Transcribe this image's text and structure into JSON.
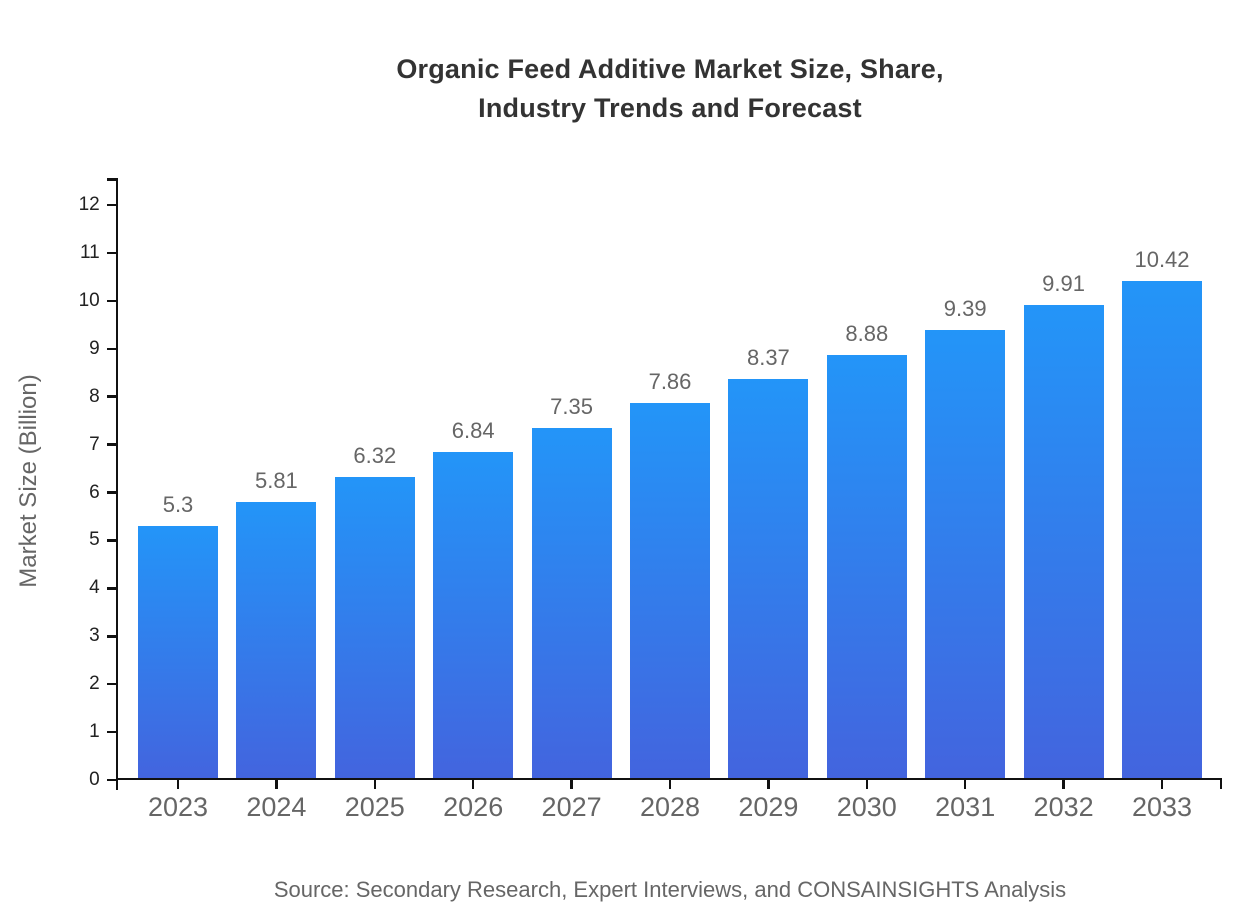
{
  "chart_data": {
    "type": "bar",
    "title": "Organic Feed Additive Market Size, Share,\nIndustry Trends and Forecast",
    "ylabel": "Market Size (Billion)",
    "xlabel": "",
    "categories": [
      "2023",
      "2024",
      "2025",
      "2026",
      "2027",
      "2028",
      "2029",
      "2030",
      "2031",
      "2032",
      "2033"
    ],
    "values": [
      5.3,
      5.81,
      6.32,
      6.84,
      7.35,
      7.86,
      8.37,
      8.88,
      9.39,
      9.91,
      10.42
    ],
    "value_labels": [
      "5.3",
      "5.81",
      "6.32",
      "6.84",
      "7.35",
      "7.86",
      "8.37",
      "8.88",
      "9.39",
      "9.91",
      "10.42"
    ],
    "yticks": [
      0,
      1,
      2,
      3,
      4,
      5,
      6,
      7,
      8,
      9,
      10,
      11,
      12
    ],
    "ylim": [
      0,
      12.56
    ],
    "grid": false,
    "legend": null,
    "source_note": "Source: Secondary Research, Expert Interviews, and CONSAINSIGHTS Analysis",
    "colors": {
      "background": "#ffffff",
      "title": "#333333",
      "axis": "#111111",
      "y_tick_label": "#222222",
      "x_tick_label": "#666666",
      "value_label": "#666666",
      "axis_title": "#666666",
      "source": "#666666",
      "bar_gradient_top": "#2395f8",
      "bar_gradient_bottom": "#4364de"
    }
  }
}
